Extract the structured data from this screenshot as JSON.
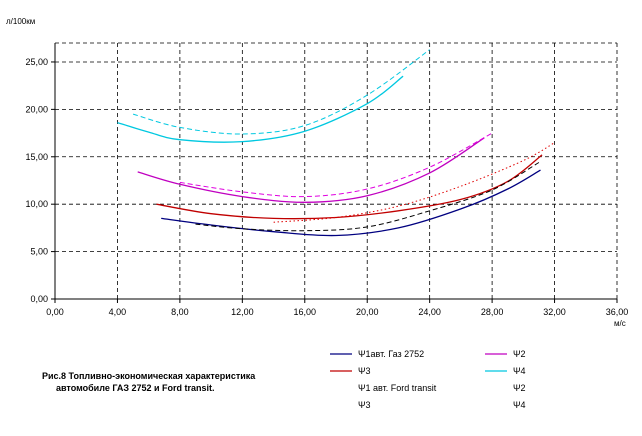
{
  "chart_data": {
    "type": "line",
    "ylabel": "л/100км",
    "xlabel": "м/с",
    "xlim": [
      0,
      36
    ],
    "ylim": [
      0,
      27
    ],
    "xticks": [
      "0,00",
      "4,00",
      "8,00",
      "12,00",
      "16,00",
      "20,00",
      "24,00",
      "28,00",
      "32,00",
      "36,00"
    ],
    "yticks": [
      "0,00",
      "5,00",
      "10,00",
      "15,00",
      "20,00",
      "25,00"
    ],
    "grid": true,
    "caption": [
      "Рис.8 Топливно-экономическая характеристика",
      "автомобиле ГАЗ 2752 и Ford transit."
    ],
    "legend": [
      {
        "label": "Ψ1авт. Газ 2752",
        "color": "#000080",
        "dash": "solid"
      },
      {
        "label": "Ψ2",
        "color": "#c000c0",
        "dash": "solid"
      },
      {
        "label": "Ψ3",
        "color": "#c00000",
        "dash": "solid"
      },
      {
        "label": "Ψ4",
        "color": "#00c8e0",
        "dash": "solid"
      },
      {
        "label": "Ψ1 авт. Ford transit",
        "color": "#000000",
        "dash": "dash"
      },
      {
        "label": "Ψ2",
        "color": "#e000e0",
        "dash": "dash"
      },
      {
        "label": "Ψ3",
        "color": "#e00000",
        "dash": "dot"
      },
      {
        "label": "Ψ4",
        "color": "#00c8e0",
        "dash": "dash"
      }
    ],
    "series": [
      {
        "name": "Ψ1авт. Газ 2752",
        "color": "#000080",
        "dash": "solid",
        "x": [
          6.8,
          10,
          14,
          18,
          22,
          26,
          29,
          31.1
        ],
        "y": [
          8.5,
          7.8,
          7.1,
          6.7,
          7.5,
          9.5,
          11.6,
          13.6
        ]
      },
      {
        "name": "Ψ3",
        "color": "#c00000",
        "dash": "solid",
        "x": [
          6.5,
          10,
          14,
          18,
          22,
          26,
          29,
          31.2
        ],
        "y": [
          10.0,
          9.0,
          8.5,
          8.6,
          9.3,
          10.5,
          12.4,
          15.2
        ]
      },
      {
        "name": "Ψ2",
        "color": "#c000c0",
        "dash": "solid",
        "x": [
          5.3,
          8,
          12,
          16,
          20,
          24,
          27.5
        ],
        "y": [
          13.4,
          12.1,
          10.8,
          10.2,
          10.9,
          13.3,
          17.0
        ]
      },
      {
        "name": "Ψ4",
        "color": "#00c8e0",
        "dash": "solid",
        "x": [
          4.0,
          6,
          8,
          12,
          16,
          20,
          22.3
        ],
        "y": [
          18.6,
          17.6,
          16.8,
          16.6,
          17.7,
          20.6,
          23.5
        ]
      },
      {
        "name": "Ψ1 авт. Ford transit",
        "color": "#000000",
        "dash": "dash",
        "x": [
          9,
          12,
          16,
          20,
          24,
          28,
          31
        ],
        "y": [
          7.9,
          7.4,
          7.2,
          7.6,
          9.3,
          11.5,
          14.4
        ]
      },
      {
        "name": "Ψ3",
        "color": "#e00000",
        "dash": "dot",
        "x": [
          14,
          18,
          22,
          26,
          30,
          32
        ],
        "y": [
          8.1,
          8.6,
          9.8,
          11.9,
          14.6,
          16.5
        ]
      },
      {
        "name": "Ψ2",
        "color": "#e000e0",
        "dash": "dash",
        "x": [
          8,
          12,
          16,
          20,
          24,
          28
        ],
        "y": [
          12.3,
          11.3,
          10.8,
          11.6,
          13.9,
          17.5
        ]
      },
      {
        "name": "Ψ4",
        "color": "#00c8e0",
        "dash": "dash",
        "x": [
          5,
          8,
          12,
          16,
          20,
          24
        ],
        "y": [
          19.5,
          18.1,
          17.4,
          18.3,
          21.5,
          26.3
        ]
      }
    ]
  }
}
